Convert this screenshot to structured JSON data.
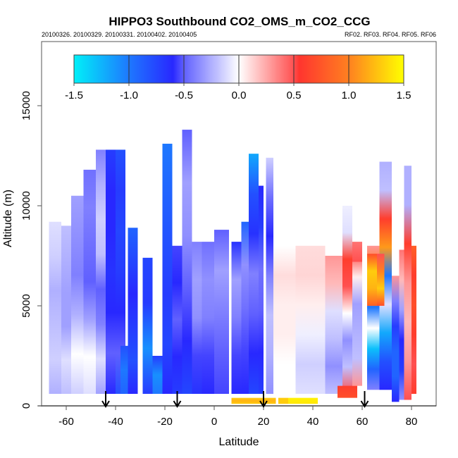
{
  "chart_data": {
    "type": "heatmap",
    "title": "HIPPO3 Southbound CO2_OMS_m_CO2_CCG",
    "subtitle_left": "20100326. 20100329. 20100331. 20100402. 20100405",
    "subtitle_right": "RF02. RF03. RF04. RF05. RF06",
    "xlabel": "Latitude",
    "ylabel": "Altitude (m)",
    "xlim": [
      -70,
      90
    ],
    "ylim": [
      0,
      17500
    ],
    "xticks": [
      -60,
      -40,
      -20,
      0,
      20,
      40,
      60,
      80
    ],
    "xtick_labels": [
      "-60",
      "-40",
      "-20",
      "0",
      "20",
      "40",
      "60",
      "80"
    ],
    "yticks": [
      0,
      5000,
      10000,
      15000
    ],
    "ytick_labels": [
      "0",
      "5000",
      "10000",
      "15000"
    ],
    "colorbar": {
      "range": [
        -1.5,
        1.5
      ],
      "ticks": [
        -1.5,
        -1.0,
        -0.5,
        0.0,
        0.5,
        1.0,
        1.5
      ],
      "tick_labels": [
        "-1.5",
        "-1.0",
        "-0.5",
        "0.0",
        "0.5",
        "1.0",
        "1.5"
      ],
      "stops": [
        {
          "v": -1.5,
          "color": "#00f0f8"
        },
        {
          "v": -1.0,
          "color": "#1e78ff"
        },
        {
          "v": -0.6,
          "color": "#2828ff"
        },
        {
          "v": -0.5,
          "color": "#6060ff"
        },
        {
          "v": 0.0,
          "color": "#ffffff"
        },
        {
          "v": 0.5,
          "color": "#ff5050"
        },
        {
          "v": 0.52,
          "color": "#ff3030"
        },
        {
          "v": 1.0,
          "color": "#ff8020"
        },
        {
          "v": 1.5,
          "color": "#ffff00"
        }
      ]
    },
    "flight_markers_lat": [
      -44,
      -15,
      20,
      61
    ],
    "patches": [
      {
        "lat": [
          -67,
          -62
        ],
        "alt": [
          600,
          9200
        ],
        "v": [
          -0.25,
          -0.15,
          -0.2,
          -0.25,
          -0.15,
          -0.1
        ]
      },
      {
        "lat": [
          -62,
          -58
        ],
        "alt": [
          600,
          9000
        ],
        "v": [
          -0.2,
          -0.1,
          -0.3,
          -0.3,
          -0.25,
          -0.2
        ]
      },
      {
        "lat": [
          -58,
          -53
        ],
        "alt": [
          600,
          10500
        ],
        "v": [
          -0.15,
          0.0,
          -0.25,
          -0.4,
          -0.35,
          -0.3
        ]
      },
      {
        "lat": [
          -53,
          -48
        ],
        "alt": [
          600,
          11800
        ],
        "v": [
          -0.1,
          0.0,
          -0.3,
          -0.5,
          -0.45,
          -0.4,
          -0.45
        ]
      },
      {
        "lat": [
          -48,
          -44
        ],
        "alt": [
          600,
          12800
        ],
        "v": [
          -0.3,
          -0.1,
          -0.4,
          -0.5,
          -0.2,
          -0.15,
          -0.25,
          -0.4
        ]
      },
      {
        "lat": [
          -44,
          -40
        ],
        "alt": [
          600,
          12800
        ],
        "v": [
          -0.6,
          -0.5,
          -0.6,
          -0.65,
          -0.6,
          -0.6,
          -0.7
        ]
      },
      {
        "lat": [
          -40,
          -36
        ],
        "alt": [
          600,
          12800
        ],
        "v": [
          -0.8,
          -0.5,
          -0.6,
          -0.7,
          -0.75,
          -0.7,
          -0.8
        ]
      },
      {
        "lat": [
          -38,
          -33
        ],
        "alt": [
          600,
          3000
        ],
        "v": [
          -0.9,
          -1.0,
          -0.8
        ]
      },
      {
        "lat": [
          -35,
          -31
        ],
        "alt": [
          600,
          8900
        ],
        "v": [
          -0.6,
          -0.8,
          -0.7,
          -0.6,
          -0.75,
          -0.9
        ]
      },
      {
        "lat": [
          -29,
          -25
        ],
        "alt": [
          600,
          7400
        ],
        "v": [
          -0.7,
          -1.1,
          -0.7,
          -0.75
        ]
      },
      {
        "lat": [
          -25,
          -20
        ],
        "alt": [
          600,
          2500
        ],
        "v": [
          -1.0,
          -1.1,
          -0.7
        ]
      },
      {
        "lat": [
          -21,
          -17
        ],
        "alt": [
          600,
          13100
        ],
        "v": [
          -0.6,
          -0.75,
          -0.7,
          -0.8,
          -0.9,
          -1.0
        ]
      },
      {
        "lat": [
          -17,
          -13
        ],
        "alt": [
          600,
          8000
        ],
        "v": [
          -0.7,
          -0.6,
          -0.5,
          -0.6,
          -0.55
        ]
      },
      {
        "lat": [
          -13,
          -9
        ],
        "alt": [
          600,
          13800
        ],
        "v": [
          -0.75,
          -0.6,
          -0.5,
          -0.35,
          -0.3,
          -0.5
        ]
      },
      {
        "lat": [
          -9,
          -5
        ],
        "alt": [
          600,
          8200
        ],
        "v": [
          -0.65,
          -0.55,
          -0.35,
          -0.3,
          -0.4
        ]
      },
      {
        "lat": [
          -5,
          0
        ],
        "alt": [
          600,
          8200
        ],
        "v": [
          -0.6,
          -0.55,
          -0.4,
          -0.35,
          -0.45
        ]
      },
      {
        "lat": [
          0,
          6
        ],
        "alt": [
          600,
          8800
        ],
        "v": [
          -0.55,
          -0.5,
          -0.4,
          -0.3,
          -0.5
        ]
      },
      {
        "lat": [
          7,
          11
        ],
        "alt": [
          600,
          8200
        ],
        "v": [
          -0.6,
          -0.55,
          -0.4,
          -0.3,
          -0.65
        ]
      },
      {
        "lat": [
          11,
          14
        ],
        "alt": [
          600,
          9200
        ],
        "v": [
          -0.6,
          -0.55,
          -0.45,
          -0.35,
          -0.9
        ]
      },
      {
        "lat": [
          14,
          18
        ],
        "alt": [
          600,
          12600
        ],
        "v": [
          -0.75,
          -0.6,
          -0.5,
          -0.4,
          -0.65,
          -0.8,
          -1.2
        ]
      },
      {
        "lat": [
          18,
          20
        ],
        "alt": [
          600,
          11000
        ],
        "v": [
          -0.7,
          -0.6,
          -0.5,
          -0.45,
          -0.7,
          -0.6
        ]
      },
      {
        "lat": [
          21,
          24
        ],
        "alt": [
          600,
          12400
        ],
        "v": [
          -0.35,
          -0.25,
          -0.2,
          -0.4,
          -0.6,
          -0.45,
          -0.15
        ]
      },
      {
        "lat": [
          24,
          33
        ],
        "alt": [
          600,
          8000
        ],
        "v": [
          0.0,
          0.0,
          0.05,
          0.05,
          0.1,
          0.0
        ]
      },
      {
        "lat": [
          33,
          45
        ],
        "alt": [
          600,
          8000
        ],
        "v": [
          -0.1,
          -0.15,
          -0.05,
          0.05,
          0.12,
          0.1
        ]
      },
      {
        "lat": [
          45,
          52
        ],
        "alt": [
          600,
          7500
        ],
        "v": [
          -0.2,
          -0.35,
          -0.2,
          -0.1,
          0.2,
          0.3
        ]
      },
      {
        "lat": [
          52,
          56
        ],
        "alt": [
          600,
          10000
        ],
        "v": [
          0.5,
          -0.2,
          -0.35,
          0.0,
          0.5,
          0.6,
          -0.1,
          -0.05
        ]
      },
      {
        "lat": [
          56,
          60
        ],
        "alt": [
          1000,
          7800
        ],
        "v": [
          0.3,
          -0.2,
          -0.25,
          -0.3,
          0.05,
          0.55
        ]
      },
      {
        "lat": [
          62,
          67
        ],
        "alt": [
          800,
          8000
        ],
        "v": [
          -0.4,
          -0.9,
          -1.3,
          0.0,
          -1.0,
          0.9,
          1.0,
          0.3
        ]
      },
      {
        "lat": [
          67,
          72
        ],
        "alt": [
          800,
          12200
        ],
        "v": [
          -0.6,
          -0.8,
          -1.2,
          -0.1,
          -1.0,
          1.1,
          0.6,
          -0.2,
          -0.25
        ]
      },
      {
        "lat": [
          72,
          75
        ],
        "alt": [
          200,
          6500
        ],
        "v": [
          -0.6,
          -0.9,
          -0.9,
          -0.7,
          -0.4,
          0.3
        ]
      },
      {
        "lat": [
          75,
          79
        ],
        "alt": [
          300,
          7800
        ],
        "v": [
          -0.35,
          -0.7,
          -0.6,
          -0.3,
          0.2,
          0.4
        ]
      },
      {
        "lat": [
          77,
          80
        ],
        "alt": [
          300,
          12000
        ],
        "v": [
          0.5,
          0.3,
          0.2,
          0.3,
          0.6,
          -0.25,
          -0.25
        ]
      },
      {
        "lat": [
          80,
          82
        ],
        "alt": [
          600,
          8000
        ],
        "v": [
          0.6,
          0.5,
          0.6,
          0.7,
          0.6,
          0.8
        ]
      },
      {
        "lat": [
          7,
          25
        ],
        "alt": [
          100,
          400
        ],
        "v": [
          1.3,
          1.2,
          1.3
        ]
      },
      {
        "lat": [
          26,
          30
        ],
        "alt": [
          100,
          400
        ],
        "v": [
          1.3,
          1.3
        ]
      },
      {
        "lat": [
          30,
          42
        ],
        "alt": [
          100,
          400
        ],
        "v": [
          1.4,
          1.45
        ]
      },
      {
        "lat": [
          50,
          58
        ],
        "alt": [
          400,
          1000
        ],
        "v": [
          0.7,
          0.6
        ]
      },
      {
        "lat": [
          56,
          60
        ],
        "alt": [
          7200,
          8200
        ],
        "v": [
          0.5,
          0.4
        ]
      },
      {
        "lat": [
          62,
          66
        ],
        "alt": [
          5000,
          7600
        ],
        "v": [
          0.8,
          1.2,
          1.3,
          0.7
        ]
      },
      {
        "lat": [
          66,
          69
        ],
        "alt": [
          5000,
          7600
        ],
        "v": [
          0.7,
          1.3,
          1.0,
          0.5
        ]
      }
    ]
  }
}
